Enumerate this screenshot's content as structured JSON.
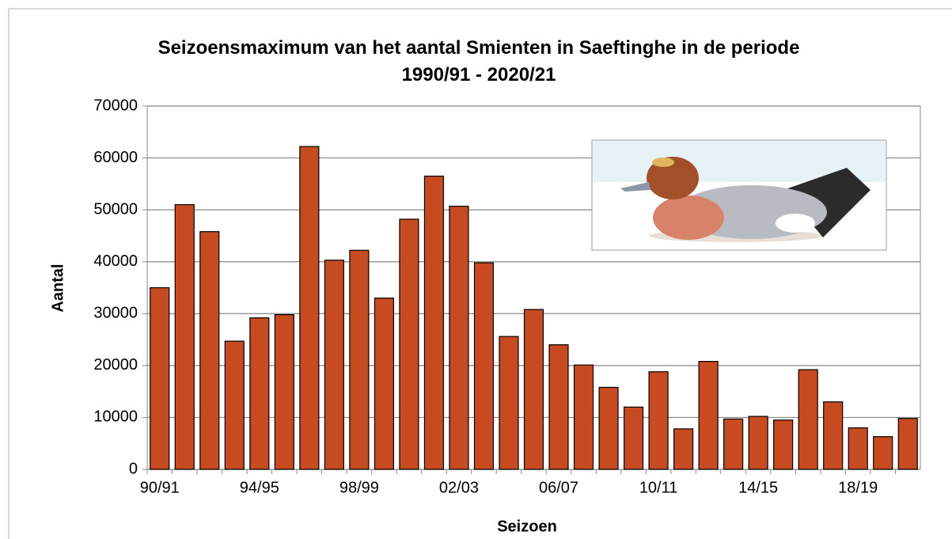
{
  "chart_data": {
    "type": "bar",
    "title": "Seizoensmaximum van het aantal Smienten in Saeftinghe in de periode 1990/91 - 2020/21",
    "x_label": "Seizoen",
    "y_label": "Aantal",
    "categories": [
      "90/91",
      null,
      null,
      null,
      "94/95",
      null,
      null,
      null,
      "98/99",
      null,
      null,
      null,
      "02/03",
      null,
      null,
      null,
      "06/07",
      null,
      null,
      null,
      "10/11",
      null,
      null,
      null,
      "14/15",
      null,
      null,
      null,
      "18/19",
      null,
      null
    ],
    "values": [
      35000,
      51000,
      45800,
      24700,
      29200,
      29800,
      62200,
      40300,
      42200,
      33000,
      48200,
      56500,
      50700,
      39800,
      25600,
      30800,
      24000,
      20100,
      15800,
      12000,
      18800,
      7800,
      20800,
      9700,
      10200,
      9500,
      19200,
      13000,
      8000,
      6300,
      9800
    ],
    "color": "#c84a20",
    "ylim": [
      0,
      70000
    ],
    "yticks": [
      0,
      10000,
      20000,
      30000,
      40000,
      50000,
      60000,
      70000
    ],
    "grid": true
  }
}
